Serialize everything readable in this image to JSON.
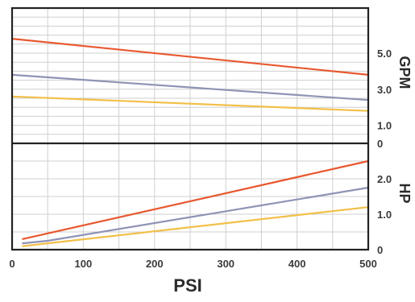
{
  "chart_data": [
    {
      "type": "line",
      "panel": "top",
      "title": "",
      "xlabel": "PSI",
      "ylabel": "GPM",
      "xlim": [
        0,
        500
      ],
      "ylim": [
        0,
        7.5
      ],
      "x_ticks": [
        "0",
        "100",
        "200",
        "300",
        "400",
        "500"
      ],
      "y_ticks": [
        {
          "value": 0,
          "label": "0"
        },
        {
          "value": 1.0,
          "label": "1.0"
        },
        {
          "value": 3.0,
          "label": "3.0"
        },
        {
          "value": 5.0,
          "label": "5.0"
        }
      ],
      "grid": true,
      "series": [
        {
          "color": "#e8582f",
          "x": [
            0,
            500
          ],
          "y": [
            5.8,
            3.8
          ]
        },
        {
          "color": "#8f93b5",
          "x": [
            0,
            500
          ],
          "y": [
            3.8,
            2.4
          ]
        },
        {
          "color": "#f2c04a",
          "x": [
            0,
            500
          ],
          "y": [
            2.6,
            1.8
          ]
        }
      ]
    },
    {
      "type": "line",
      "panel": "bottom",
      "title": "",
      "xlabel": "PSI",
      "ylabel": "HP",
      "xlim": [
        0,
        500
      ],
      "ylim": [
        0,
        3.0
      ],
      "x_ticks": [
        "0",
        "100",
        "200",
        "300",
        "400",
        "500"
      ],
      "y_ticks": [
        {
          "value": 0,
          "label": "0"
        },
        {
          "value": 1.0,
          "label": "1.0"
        },
        {
          "value": 2.0,
          "label": "2.0"
        }
      ],
      "grid": true,
      "series": [
        {
          "color": "#e8582f",
          "x": [
            15,
            500
          ],
          "y": [
            0.3,
            2.5
          ]
        },
        {
          "color": "#8f93b5",
          "x": [
            15,
            50,
            500
          ],
          "y": [
            0.18,
            0.25,
            1.75
          ]
        },
        {
          "color": "#f2c04a",
          "x": [
            15,
            500
          ],
          "y": [
            0.1,
            1.2
          ]
        }
      ]
    }
  ]
}
